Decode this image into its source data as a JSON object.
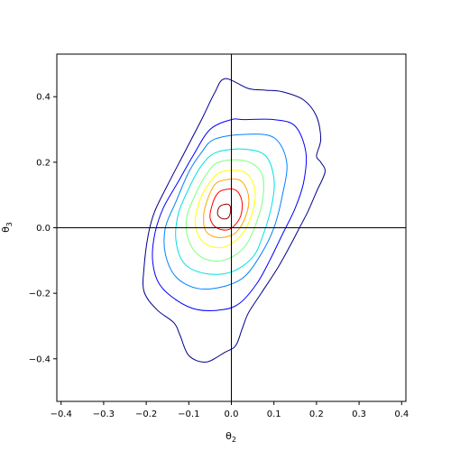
{
  "chart_data": {
    "type": "contour",
    "xlabel": "θ",
    "xlabel_sub": "2",
    "ylabel": "θ",
    "ylabel_sub": "3",
    "xlim": [
      -0.41,
      0.41
    ],
    "ylim": [
      -0.53,
      0.53
    ],
    "x_ticks": [
      -0.4,
      -0.3,
      -0.2,
      -0.1,
      0.0,
      0.1,
      0.2,
      0.3,
      0.4
    ],
    "x_tick_labels": [
      "−0.4",
      "−0.3",
      "−0.2",
      "−0.1",
      "0.0",
      "0.1",
      "0.2",
      "0.3",
      "0.4"
    ],
    "y_ticks": [
      -0.4,
      -0.2,
      0.0,
      0.2,
      0.4
    ],
    "y_tick_labels": [
      "−0.4",
      "−0.2",
      "0.0",
      "0.2",
      "0.4"
    ],
    "reference_lines": {
      "x": 0.0,
      "y": 0.0
    },
    "center": [
      -0.02,
      0.05
    ],
    "colormap": "jet",
    "contours": [
      {
        "color": "#00008b",
        "points": [
          [
            -0.015,
            0.455
          ],
          [
            0.04,
            0.425
          ],
          [
            0.08,
            0.42
          ],
          [
            0.12,
            0.415
          ],
          [
            0.17,
            0.39
          ],
          [
            0.2,
            0.34
          ],
          [
            0.21,
            0.27
          ],
          [
            0.2,
            0.22
          ],
          [
            0.21,
            0.2
          ],
          [
            0.22,
            0.17
          ],
          [
            0.2,
            0.11
          ],
          [
            0.18,
            0.05
          ],
          [
            0.16,
            0.0
          ],
          [
            0.14,
            -0.05
          ],
          [
            0.11,
            -0.12
          ],
          [
            0.07,
            -0.2
          ],
          [
            0.04,
            -0.26
          ],
          [
            0.025,
            -0.31
          ],
          [
            0.01,
            -0.36
          ],
          [
            -0.015,
            -0.38
          ],
          [
            -0.06,
            -0.41
          ],
          [
            -0.1,
            -0.39
          ],
          [
            -0.12,
            -0.33
          ],
          [
            -0.135,
            -0.29
          ],
          [
            -0.175,
            -0.25
          ],
          [
            -0.205,
            -0.195
          ],
          [
            -0.205,
            -0.12
          ],
          [
            -0.195,
            -0.02
          ],
          [
            -0.18,
            0.05
          ],
          [
            -0.15,
            0.13
          ],
          [
            -0.11,
            0.23
          ],
          [
            -0.07,
            0.33
          ],
          [
            -0.04,
            0.41
          ]
        ]
      },
      {
        "color": "#0000ff",
        "points": [
          [
            0.0,
            0.33
          ],
          [
            0.03,
            0.33
          ],
          [
            0.1,
            0.33
          ],
          [
            0.15,
            0.31
          ],
          [
            0.175,
            0.23
          ],
          [
            0.17,
            0.14
          ],
          [
            0.15,
            0.06
          ],
          [
            0.12,
            -0.02
          ],
          [
            0.09,
            -0.1
          ],
          [
            0.06,
            -0.17
          ],
          [
            0.02,
            -0.23
          ],
          [
            -0.02,
            -0.25
          ],
          [
            -0.08,
            -0.25
          ],
          [
            -0.13,
            -0.22
          ],
          [
            -0.17,
            -0.17
          ],
          [
            -0.185,
            -0.1
          ],
          [
            -0.18,
            -0.02
          ],
          [
            -0.16,
            0.06
          ],
          [
            -0.125,
            0.14
          ],
          [
            -0.09,
            0.22
          ],
          [
            -0.05,
            0.3
          ]
        ]
      },
      {
        "color": "#0080ff",
        "points": [
          [
            -0.04,
            0.27
          ],
          [
            0.03,
            0.285
          ],
          [
            0.1,
            0.275
          ],
          [
            0.13,
            0.2
          ],
          [
            0.12,
            0.1
          ],
          [
            0.1,
            0.0
          ],
          [
            0.07,
            -0.08
          ],
          [
            0.03,
            -0.15
          ],
          [
            -0.02,
            -0.18
          ],
          [
            -0.08,
            -0.185
          ],
          [
            -0.13,
            -0.15
          ],
          [
            -0.155,
            -0.08
          ],
          [
            -0.155,
            0.0
          ],
          [
            -0.13,
            0.08
          ],
          [
            -0.1,
            0.17
          ],
          [
            -0.07,
            0.23
          ]
        ]
      },
      {
        "color": "#00e0e0",
        "points": [
          [
            -0.035,
            0.23
          ],
          [
            0.03,
            0.24
          ],
          [
            0.08,
            0.22
          ],
          [
            0.1,
            0.15
          ],
          [
            0.095,
            0.07
          ],
          [
            0.075,
            -0.02
          ],
          [
            0.05,
            -0.09
          ],
          [
            0.0,
            -0.135
          ],
          [
            -0.06,
            -0.14
          ],
          [
            -0.11,
            -0.11
          ],
          [
            -0.13,
            -0.04
          ],
          [
            -0.125,
            0.04
          ],
          [
            -0.1,
            0.12
          ],
          [
            -0.07,
            0.19
          ]
        ]
      },
      {
        "color": "#7fff7f",
        "points": [
          [
            -0.03,
            0.2
          ],
          [
            0.03,
            0.205
          ],
          [
            0.07,
            0.17
          ],
          [
            0.075,
            0.1
          ],
          [
            0.06,
            0.02
          ],
          [
            0.03,
            -0.06
          ],
          [
            -0.02,
            -0.1
          ],
          [
            -0.07,
            -0.09
          ],
          [
            -0.1,
            -0.04
          ],
          [
            -0.105,
            0.03
          ],
          [
            -0.085,
            0.1
          ],
          [
            -0.06,
            0.16
          ]
        ]
      },
      {
        "color": "#ffff00",
        "points": [
          [
            -0.025,
            0.17
          ],
          [
            0.03,
            0.17
          ],
          [
            0.055,
            0.12
          ],
          [
            0.05,
            0.05
          ],
          [
            0.025,
            -0.02
          ],
          [
            -0.02,
            -0.06
          ],
          [
            -0.065,
            -0.045
          ],
          [
            -0.085,
            0.01
          ],
          [
            -0.075,
            0.08
          ],
          [
            -0.055,
            0.13
          ]
        ]
      },
      {
        "color": "#ffa500",
        "points": [
          [
            -0.02,
            0.145
          ],
          [
            0.02,
            0.145
          ],
          [
            0.04,
            0.1
          ],
          [
            0.035,
            0.04
          ],
          [
            0.01,
            -0.015
          ],
          [
            -0.03,
            -0.03
          ],
          [
            -0.06,
            -0.01
          ],
          [
            -0.065,
            0.04
          ],
          [
            -0.055,
            0.09
          ],
          [
            -0.04,
            0.13
          ]
        ]
      },
      {
        "color": "#ff0000",
        "points": [
          [
            -0.02,
            0.115
          ],
          [
            0.01,
            0.115
          ],
          [
            0.025,
            0.08
          ],
          [
            0.02,
            0.03
          ],
          [
            -0.005,
            -0.005
          ],
          [
            -0.035,
            0.0
          ],
          [
            -0.05,
            0.03
          ],
          [
            -0.045,
            0.07
          ],
          [
            -0.035,
            0.1
          ]
        ]
      },
      {
        "color": "#8b0000",
        "points": [
          [
            -0.02,
            0.07
          ],
          [
            -0.005,
            0.07
          ],
          [
            -0.002,
            0.05
          ],
          [
            -0.008,
            0.03
          ],
          [
            -0.022,
            0.028
          ],
          [
            -0.032,
            0.04
          ],
          [
            -0.03,
            0.06
          ]
        ]
      }
    ]
  }
}
